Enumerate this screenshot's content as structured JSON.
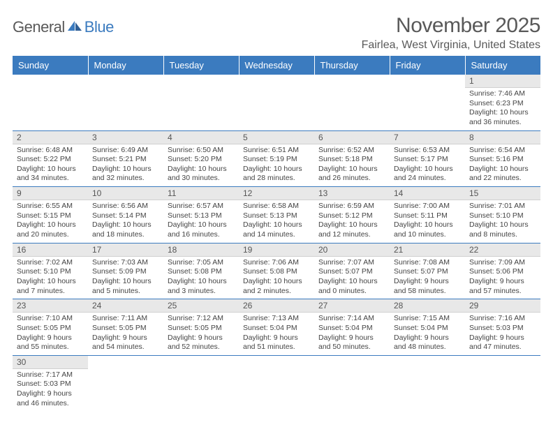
{
  "logo": {
    "text1": "General",
    "text2": "Blue"
  },
  "title": "November 2025",
  "location": "Fairlea, West Virginia, United States",
  "day_headers": [
    "Sunday",
    "Monday",
    "Tuesday",
    "Wednesday",
    "Thursday",
    "Friday",
    "Saturday"
  ],
  "colors": {
    "header_bg": "#3b7bbf",
    "header_text": "#ffffff",
    "daynum_bg": "#e8e8e8",
    "row_border": "#3b7bbf",
    "logo_gray": "#595959",
    "logo_blue": "#3b7bbf"
  },
  "weeks": [
    [
      null,
      null,
      null,
      null,
      null,
      null,
      {
        "n": "1",
        "sr": "Sunrise: 7:46 AM",
        "ss": "Sunset: 6:23 PM",
        "dl": "Daylight: 10 hours and 36 minutes."
      }
    ],
    [
      {
        "n": "2",
        "sr": "Sunrise: 6:48 AM",
        "ss": "Sunset: 5:22 PM",
        "dl": "Daylight: 10 hours and 34 minutes."
      },
      {
        "n": "3",
        "sr": "Sunrise: 6:49 AM",
        "ss": "Sunset: 5:21 PM",
        "dl": "Daylight: 10 hours and 32 minutes."
      },
      {
        "n": "4",
        "sr": "Sunrise: 6:50 AM",
        "ss": "Sunset: 5:20 PM",
        "dl": "Daylight: 10 hours and 30 minutes."
      },
      {
        "n": "5",
        "sr": "Sunrise: 6:51 AM",
        "ss": "Sunset: 5:19 PM",
        "dl": "Daylight: 10 hours and 28 minutes."
      },
      {
        "n": "6",
        "sr": "Sunrise: 6:52 AM",
        "ss": "Sunset: 5:18 PM",
        "dl": "Daylight: 10 hours and 26 minutes."
      },
      {
        "n": "7",
        "sr": "Sunrise: 6:53 AM",
        "ss": "Sunset: 5:17 PM",
        "dl": "Daylight: 10 hours and 24 minutes."
      },
      {
        "n": "8",
        "sr": "Sunrise: 6:54 AM",
        "ss": "Sunset: 5:16 PM",
        "dl": "Daylight: 10 hours and 22 minutes."
      }
    ],
    [
      {
        "n": "9",
        "sr": "Sunrise: 6:55 AM",
        "ss": "Sunset: 5:15 PM",
        "dl": "Daylight: 10 hours and 20 minutes."
      },
      {
        "n": "10",
        "sr": "Sunrise: 6:56 AM",
        "ss": "Sunset: 5:14 PM",
        "dl": "Daylight: 10 hours and 18 minutes."
      },
      {
        "n": "11",
        "sr": "Sunrise: 6:57 AM",
        "ss": "Sunset: 5:13 PM",
        "dl": "Daylight: 10 hours and 16 minutes."
      },
      {
        "n": "12",
        "sr": "Sunrise: 6:58 AM",
        "ss": "Sunset: 5:13 PM",
        "dl": "Daylight: 10 hours and 14 minutes."
      },
      {
        "n": "13",
        "sr": "Sunrise: 6:59 AM",
        "ss": "Sunset: 5:12 PM",
        "dl": "Daylight: 10 hours and 12 minutes."
      },
      {
        "n": "14",
        "sr": "Sunrise: 7:00 AM",
        "ss": "Sunset: 5:11 PM",
        "dl": "Daylight: 10 hours and 10 minutes."
      },
      {
        "n": "15",
        "sr": "Sunrise: 7:01 AM",
        "ss": "Sunset: 5:10 PM",
        "dl": "Daylight: 10 hours and 8 minutes."
      }
    ],
    [
      {
        "n": "16",
        "sr": "Sunrise: 7:02 AM",
        "ss": "Sunset: 5:10 PM",
        "dl": "Daylight: 10 hours and 7 minutes."
      },
      {
        "n": "17",
        "sr": "Sunrise: 7:03 AM",
        "ss": "Sunset: 5:09 PM",
        "dl": "Daylight: 10 hours and 5 minutes."
      },
      {
        "n": "18",
        "sr": "Sunrise: 7:05 AM",
        "ss": "Sunset: 5:08 PM",
        "dl": "Daylight: 10 hours and 3 minutes."
      },
      {
        "n": "19",
        "sr": "Sunrise: 7:06 AM",
        "ss": "Sunset: 5:08 PM",
        "dl": "Daylight: 10 hours and 2 minutes."
      },
      {
        "n": "20",
        "sr": "Sunrise: 7:07 AM",
        "ss": "Sunset: 5:07 PM",
        "dl": "Daylight: 10 hours and 0 minutes."
      },
      {
        "n": "21",
        "sr": "Sunrise: 7:08 AM",
        "ss": "Sunset: 5:07 PM",
        "dl": "Daylight: 9 hours and 58 minutes."
      },
      {
        "n": "22",
        "sr": "Sunrise: 7:09 AM",
        "ss": "Sunset: 5:06 PM",
        "dl": "Daylight: 9 hours and 57 minutes."
      }
    ],
    [
      {
        "n": "23",
        "sr": "Sunrise: 7:10 AM",
        "ss": "Sunset: 5:05 PM",
        "dl": "Daylight: 9 hours and 55 minutes."
      },
      {
        "n": "24",
        "sr": "Sunrise: 7:11 AM",
        "ss": "Sunset: 5:05 PM",
        "dl": "Daylight: 9 hours and 54 minutes."
      },
      {
        "n": "25",
        "sr": "Sunrise: 7:12 AM",
        "ss": "Sunset: 5:05 PM",
        "dl": "Daylight: 9 hours and 52 minutes."
      },
      {
        "n": "26",
        "sr": "Sunrise: 7:13 AM",
        "ss": "Sunset: 5:04 PM",
        "dl": "Daylight: 9 hours and 51 minutes."
      },
      {
        "n": "27",
        "sr": "Sunrise: 7:14 AM",
        "ss": "Sunset: 5:04 PM",
        "dl": "Daylight: 9 hours and 50 minutes."
      },
      {
        "n": "28",
        "sr": "Sunrise: 7:15 AM",
        "ss": "Sunset: 5:04 PM",
        "dl": "Daylight: 9 hours and 48 minutes."
      },
      {
        "n": "29",
        "sr": "Sunrise: 7:16 AM",
        "ss": "Sunset: 5:03 PM",
        "dl": "Daylight: 9 hours and 47 minutes."
      }
    ],
    [
      {
        "n": "30",
        "sr": "Sunrise: 7:17 AM",
        "ss": "Sunset: 5:03 PM",
        "dl": "Daylight: 9 hours and 46 minutes."
      },
      null,
      null,
      null,
      null,
      null,
      null
    ]
  ]
}
